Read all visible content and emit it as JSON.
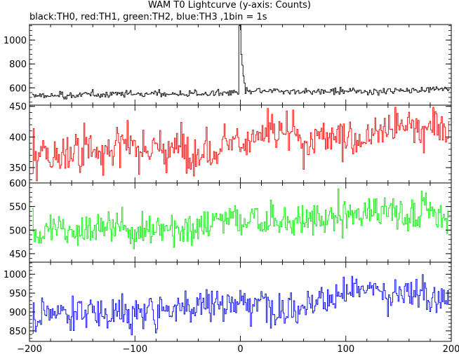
{
  "chart_data": {
    "type": "line",
    "title": "WAM T0 Lightcurve (y-axis: Counts)",
    "subtitle": "black:TH0, red:TH1, green:TH2, blue:TH3 ,1bin = 1s",
    "xlim": [
      -200,
      200
    ],
    "x_ticks": [
      -200,
      -100,
      0,
      100,
      200
    ],
    "x_tick_labels": [
      "−200",
      "−100",
      "0",
      "100",
      "200"
    ],
    "x_start": -197,
    "x_end": 198,
    "bin": 1,
    "panels": [
      {
        "series_name": "TH0",
        "color": "#000000",
        "ylim": [
          455,
          1130
        ],
        "y_ticks": [
          600,
          800,
          1000
        ],
        "baseline_start": 535,
        "baseline_end": 585,
        "noise": 13,
        "spikes": [
          {
            "x": -1,
            "y": 1120
          },
          {
            "x": 0,
            "y": 1130
          },
          {
            "x": 1,
            "y": 880
          },
          {
            "x": 2,
            "y": 790
          },
          {
            "x": 3,
            "y": 700
          },
          {
            "x": 4,
            "y": 640
          }
        ]
      },
      {
        "series_name": "TH1",
        "color": "#ff0000",
        "ylim": [
          325,
          452
        ],
        "y_ticks": [
          350,
          400,
          450
        ],
        "baseline_start": 370,
        "baseline_end": 415,
        "noise": 16,
        "spikes": []
      },
      {
        "series_name": "TH2",
        "color": "#00ee00",
        "ylim": [
          432,
          600
        ],
        "y_ticks": [
          450,
          500,
          550,
          600
        ],
        "baseline_start": 495,
        "baseline_end": 540,
        "noise": 18,
        "spikes": []
      },
      {
        "series_name": "TH3",
        "color": "#0000ff",
        "ylim": [
          822,
          1032
        ],
        "y_ticks": [
          850,
          900,
          950,
          1000
        ],
        "baseline_start": 890,
        "baseline_end": 955,
        "noise": 22,
        "spikes": []
      }
    ]
  }
}
